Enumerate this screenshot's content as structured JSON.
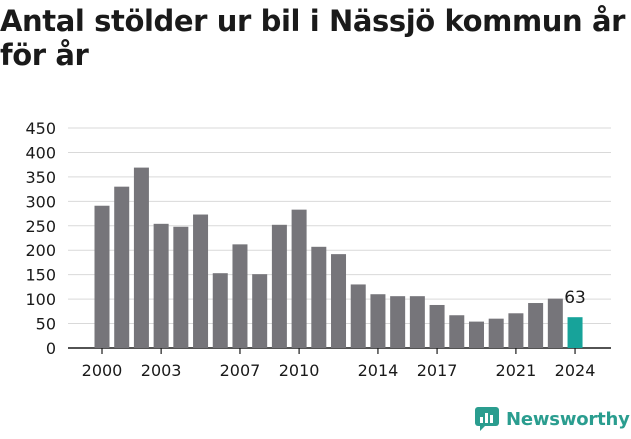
{
  "header": {
    "title": "Antal stölder ur bil i Nässjö kommun år för år"
  },
  "brand": {
    "name": "Newsworthy",
    "color": "#2a9d8f",
    "icon": "newsworthy-logo-icon"
  },
  "colors": {
    "bar": "#76757a",
    "highlight": "#17a39a",
    "grid": "#d9d9d9",
    "axis": "#1a1a1a"
  },
  "chart_data": {
    "type": "bar",
    "title": "Antal stölder ur bil i Nässjö kommun år för år",
    "xlabel": "",
    "ylabel": "",
    "ylim": [
      0,
      450
    ],
    "yticks": [
      0,
      50,
      100,
      150,
      200,
      250,
      300,
      350,
      400,
      450
    ],
    "grid": true,
    "categories": [
      2000,
      2001,
      2002,
      2003,
      2004,
      2005,
      2006,
      2007,
      2008,
      2009,
      2010,
      2011,
      2012,
      2013,
      2014,
      2015,
      2016,
      2017,
      2018,
      2019,
      2020,
      2021,
      2022,
      2023,
      2024
    ],
    "xtick_labels": [
      "2000",
      "2003",
      "2007",
      "2010",
      "2014",
      "2017",
      "2021",
      "2024"
    ],
    "values": [
      291,
      330,
      369,
      254,
      248,
      273,
      153,
      212,
      151,
      252,
      283,
      207,
      192,
      130,
      110,
      106,
      106,
      88,
      67,
      54,
      60,
      71,
      92,
      101,
      63
    ],
    "highlight_index": 24,
    "data_labels": [
      {
        "index": 24,
        "text": "63"
      }
    ]
  }
}
